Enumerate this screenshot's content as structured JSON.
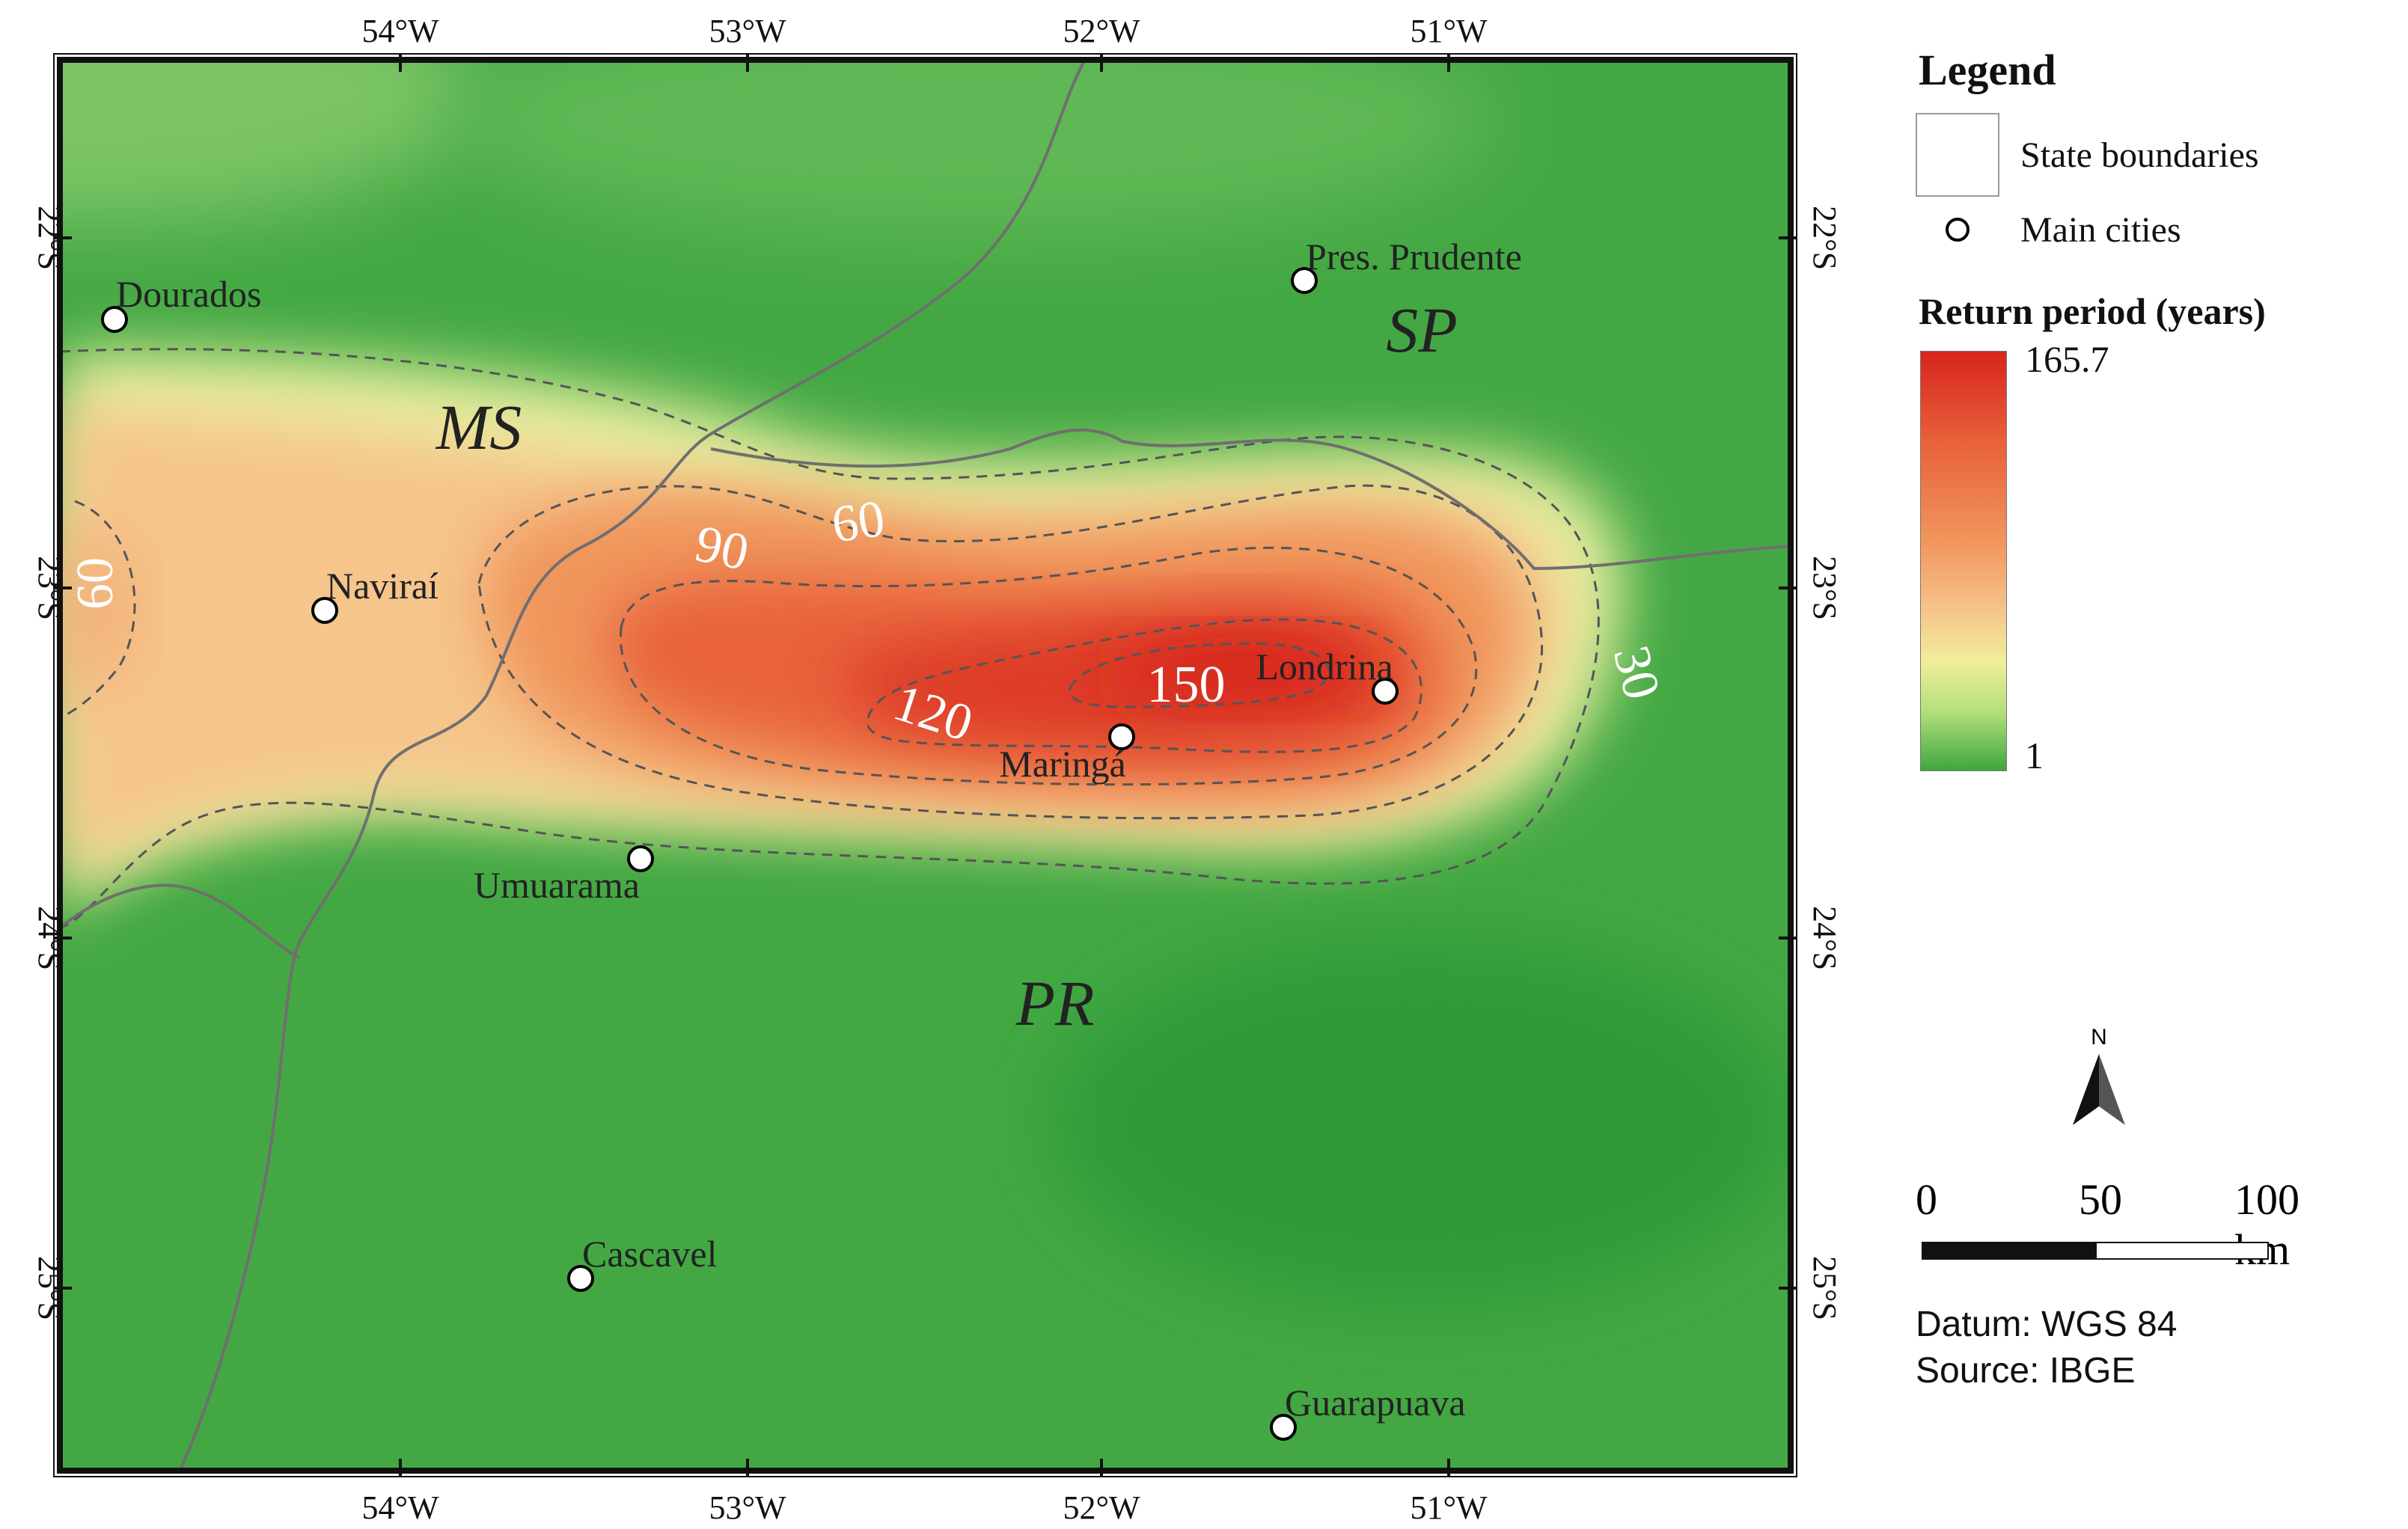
{
  "map": {
    "x_ticks": [
      "54°W",
      "53°W",
      "52°W",
      "51°W"
    ],
    "y_ticks": [
      "22°S",
      "23°S",
      "24°S",
      "25°S"
    ],
    "states": [
      "MS",
      "SP",
      "PR"
    ],
    "cities": [
      {
        "name": "Dourados",
        "lon": -54.8,
        "lat": -22.2
      },
      {
        "name": "Naviraí",
        "lon": -54.2,
        "lat": -23.07
      },
      {
        "name": "Umuarama",
        "lon": -53.32,
        "lat": -23.77
      },
      {
        "name": "Maringá",
        "lon": -51.93,
        "lat": -23.42
      },
      {
        "name": "Londrina",
        "lon": -51.16,
        "lat": -23.31
      },
      {
        "name": "Pres. Prudente",
        "lon": -51.39,
        "lat": -22.12
      },
      {
        "name": "Cascavel",
        "lon": -53.46,
        "lat": -24.96
      },
      {
        "name": "Guarapuava",
        "lon": -51.46,
        "lat": -25.39
      }
    ],
    "contour_labels": [
      "60",
      "90",
      "60",
      "120",
      "150",
      "30"
    ]
  },
  "legend": {
    "title": "Legend",
    "state_boundaries": "State boundaries",
    "main_cities": "Main cities",
    "ramp_title": "Return period (years)",
    "ramp_max": "165.7",
    "ramp_min": "1"
  },
  "north_arrow": "N",
  "scale_bar": {
    "labels": [
      "0",
      "50",
      "100 km"
    ]
  },
  "meta": {
    "datum": "Datum: WGS 84",
    "source": "Source: IBGE"
  },
  "colors": {
    "high": "#d7251e",
    "mid": "#f5c58b",
    "low": "#3ea640"
  }
}
